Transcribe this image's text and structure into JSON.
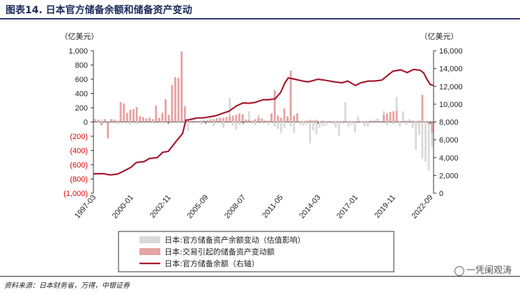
{
  "title": "图表14. 日本官方储备余额和储备资产变动",
  "source": "资料来源：日本财务省，万得，中银证券",
  "watermark": "一凭阑观涛",
  "colors": {
    "gray": "#d9d9d9",
    "pink": "#e6a3a3",
    "line": "#a6192e",
    "neg": "#e00000",
    "axis": "#333333"
  },
  "chart_data": {
    "type": "bar+line",
    "left_unit": "（亿美元）",
    "right_unit": "（亿美元）",
    "left_ylim": [
      -1000,
      1000
    ],
    "right_ylim": [
      0,
      16000
    ],
    "left_ticks": [
      "1,000",
      "800",
      "600",
      "400",
      "200",
      "0",
      "(200)",
      "(400)",
      "(600)",
      "(800)",
      "(1,000)"
    ],
    "left_tick_values": [
      1000,
      800,
      600,
      400,
      200,
      0,
      -200,
      -400,
      -600,
      -800,
      -1000
    ],
    "right_ticks": [
      "16,000",
      "14,000",
      "12,000",
      "10,000",
      "8,000",
      "6,000",
      "4,000",
      "2,000",
      "0"
    ],
    "right_tick_values": [
      16000,
      14000,
      12000,
      10000,
      8000,
      6000,
      4000,
      2000,
      0
    ],
    "x_start": "1997-03",
    "x_end": "2022-12",
    "x_tick_labels": [
      "1997-03",
      "2000-01",
      "2002-11",
      "2005-09",
      "2008-07",
      "2011-05",
      "2014-03",
      "2017-01",
      "2019-11",
      "2022-09"
    ],
    "series": [
      {
        "name": "日本:官方储备资产余额变动（估值影响）",
        "type": "bar",
        "color": "gray",
        "values": [
          20,
          -10,
          35,
          30,
          -40,
          25,
          40,
          -30,
          15,
          25,
          10,
          -40,
          30,
          -30,
          40,
          20,
          15,
          5,
          -20,
          60,
          20,
          -20,
          40,
          20,
          10,
          60,
          -15,
          20,
          -50,
          -130,
          60,
          50,
          10,
          -30,
          30,
          30,
          40,
          -60,
          60,
          50,
          -80,
          30,
          340,
          -50,
          -110,
          -40,
          60,
          40,
          150,
          -30,
          -40,
          100,
          -20,
          20,
          -40,
          110,
          -70,
          -100,
          -150,
          -80,
          40,
          -60,
          -150,
          10,
          -40,
          -50,
          -40,
          -300,
          -120,
          -170,
          -80,
          -60,
          -50,
          10,
          -30,
          -80,
          -200,
          -30,
          280,
          -70,
          -40,
          -150,
          80,
          -10,
          -60,
          -60,
          30,
          30,
          50,
          10,
          150,
          -50,
          60,
          -30,
          350,
          -60,
          150,
          -40,
          40,
          -80,
          -390,
          -180,
          -510,
          -560,
          -680,
          -350
        ]
      },
      {
        "name": "日本:交易引起的储备资产变动额",
        "type": "bar",
        "color": "pink",
        "values": [
          40,
          30,
          -50,
          40,
          -230,
          40,
          30,
          20,
          280,
          260,
          130,
          170,
          180,
          210,
          80,
          70,
          50,
          60,
          40,
          230,
          60,
          130,
          320,
          100,
          520,
          630,
          620,
          990,
          220,
          20,
          10,
          10,
          10,
          20,
          20,
          20,
          30,
          40,
          50,
          60,
          60,
          70,
          80,
          90,
          100,
          120,
          110,
          30,
          30,
          20,
          40,
          60,
          50,
          20,
          20,
          120,
          450,
          90,
          60,
          190,
          80,
          720,
          90,
          120,
          10,
          10,
          20,
          30,
          20,
          30,
          10,
          20,
          10,
          10,
          10,
          10,
          10,
          10,
          10,
          10,
          10,
          10,
          10,
          10,
          10,
          10,
          10,
          10,
          10,
          10,
          100,
          120,
          140,
          150,
          160,
          10,
          10,
          20,
          10,
          20,
          10,
          20,
          380,
          10,
          -30,
          -150
        ]
      },
      {
        "name": "日本:官方储备余额（右轴）",
        "type": "line",
        "axis": "right",
        "color": "line",
        "values": [
          [
            "1997-03",
            2180
          ],
          [
            "1997-12",
            2200
          ],
          [
            "1998-06",
            2050
          ],
          [
            "1999-01",
            2150
          ],
          [
            "1999-06",
            2450
          ],
          [
            "2000-01",
            2900
          ],
          [
            "2000-06",
            3450
          ],
          [
            "2001-01",
            3550
          ],
          [
            "2001-06",
            3900
          ],
          [
            "2002-01",
            4000
          ],
          [
            "2002-06",
            4600
          ],
          [
            "2002-11",
            4700
          ],
          [
            "2003-06",
            5800
          ],
          [
            "2003-12",
            6700
          ],
          [
            "2004-03",
            8200
          ],
          [
            "2004-06",
            8250
          ],
          [
            "2005-01",
            8450
          ],
          [
            "2005-06",
            8450
          ],
          [
            "2005-09",
            8500
          ],
          [
            "2006-06",
            8700
          ],
          [
            "2007-01",
            9000
          ],
          [
            "2007-06",
            9200
          ],
          [
            "2008-01",
            9800
          ],
          [
            "2008-07",
            10150
          ],
          [
            "2008-12",
            10100
          ],
          [
            "2009-06",
            10200
          ],
          [
            "2010-01",
            10500
          ],
          [
            "2010-06",
            10500
          ],
          [
            "2010-12",
            10600
          ],
          [
            "2011-05",
            11300
          ],
          [
            "2011-09",
            12400
          ],
          [
            "2011-12",
            12950
          ],
          [
            "2012-06",
            12800
          ],
          [
            "2013-01",
            12600
          ],
          [
            "2013-06",
            12500
          ],
          [
            "2013-12",
            12700
          ],
          [
            "2014-03",
            12800
          ],
          [
            "2014-09",
            12700
          ],
          [
            "2015-06",
            12500
          ],
          [
            "2016-01",
            12400
          ],
          [
            "2016-06",
            12600
          ],
          [
            "2017-01",
            12100
          ],
          [
            "2017-06",
            12400
          ],
          [
            "2018-01",
            12600
          ],
          [
            "2018-06",
            12600
          ],
          [
            "2019-01",
            12700
          ],
          [
            "2019-06",
            13200
          ],
          [
            "2019-11",
            13700
          ],
          [
            "2020-06",
            13850
          ],
          [
            "2020-12",
            13550
          ],
          [
            "2021-06",
            13900
          ],
          [
            "2021-12",
            13800
          ],
          [
            "2022-03",
            13500
          ],
          [
            "2022-06",
            12800
          ],
          [
            "2022-09",
            12200
          ],
          [
            "2022-12",
            12100
          ]
        ]
      }
    ],
    "legend": "bottom"
  }
}
